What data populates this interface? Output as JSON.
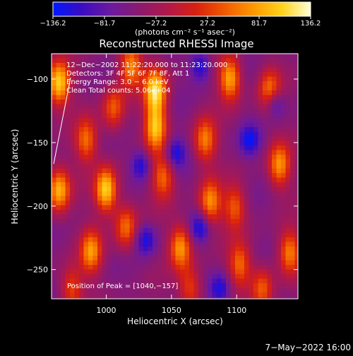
{
  "colorbar": {
    "tick_labels": [
      "−136.2",
      "−81.7",
      "−27.2",
      "27.2",
      "81.7",
      "136.2"
    ],
    "unit_label": "(photons cm⁻² s⁻¹ asec⁻²)",
    "colormap": [
      "#0018ff",
      "#3b0cc0",
      "#6a1aa0",
      "#8a1a70",
      "#b0184a",
      "#d82010",
      "#f05a00",
      "#ff9800",
      "#ffd21a",
      "#ffffd8"
    ]
  },
  "image": {
    "title": "Reconstructed RHESSI Image",
    "x_axis_label": "Heliocentric X (arcsec)",
    "y_axis_label": "Heliocentric Y (arcsec)",
    "x_ticks": [
      "1000",
      "1050",
      "1100"
    ],
    "y_ticks": [
      "−100",
      "−150",
      "−200",
      "−250"
    ],
    "x_tick_values": [
      1000,
      1050,
      1100
    ],
    "y_tick_values": [
      -100,
      -150,
      -200,
      -250
    ],
    "x_range": [
      958,
      1147
    ],
    "y_range": [
      -273,
      -80
    ],
    "annotations": [
      "12−Dec−2002 11:22:20.000 to 11:23:20.000",
      "Detectors: 3F 4F 5F 6F 7F 8F, Att 1",
      "Energy Range: 3.0 − 6.0 keV",
      "Clean    Total counts: 5.06e+04"
    ],
    "peak_label": "Position of Peak = [1040,−157]",
    "peak": [
      1040,
      -157
    ]
  },
  "footer": {
    "date": "7−May−2022 16:00"
  }
}
